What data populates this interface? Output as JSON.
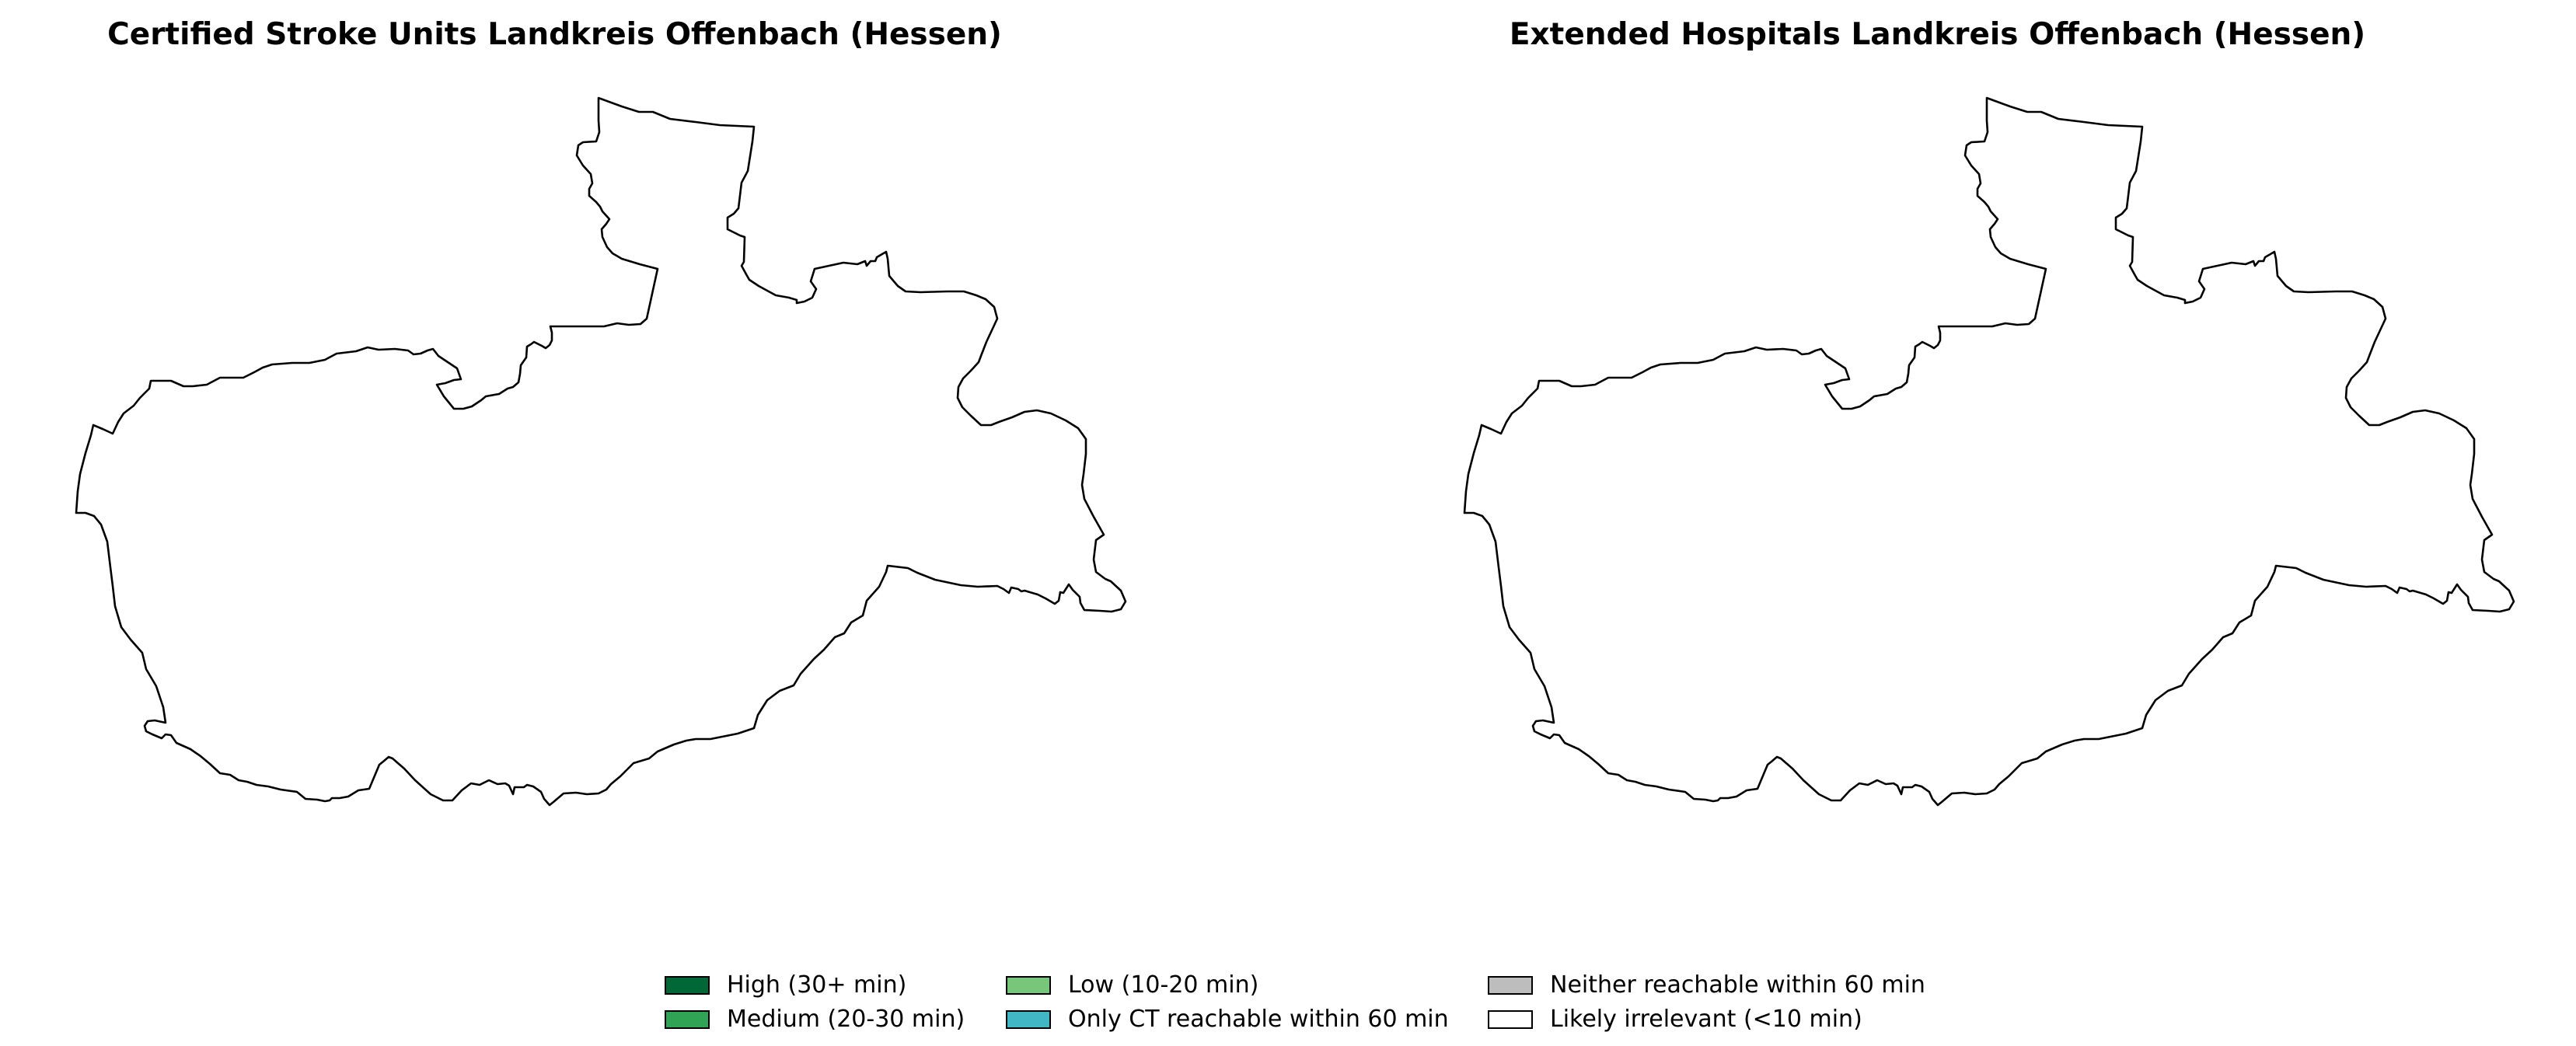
{
  "maps": [
    {
      "title": "Certified Stroke Units Landkreis Offenbach (Hessen)",
      "region_fill": "#ffffff",
      "border_color": "#000000"
    },
    {
      "title": "Extended Hospitals Landkreis Offenbach (Hessen)",
      "region_fill": "#ffffff",
      "border_color": "#000000"
    }
  ],
  "legend": {
    "items": [
      {
        "label": "High (30+ min)",
        "color": "#006837"
      },
      {
        "label": "Medium (20-30 min)",
        "color": "#31a354"
      },
      {
        "label": "Low (10-20 min)",
        "color": "#78c679"
      },
      {
        "label": "Only CT reachable within 60 min",
        "color": "#41b6c4"
      },
      {
        "label": "Neither reachable within 60 min",
        "color": "#bdbdbd"
      },
      {
        "label": "Likely irrelevant (<10 min)",
        "color": "#ffffff"
      }
    ]
  }
}
